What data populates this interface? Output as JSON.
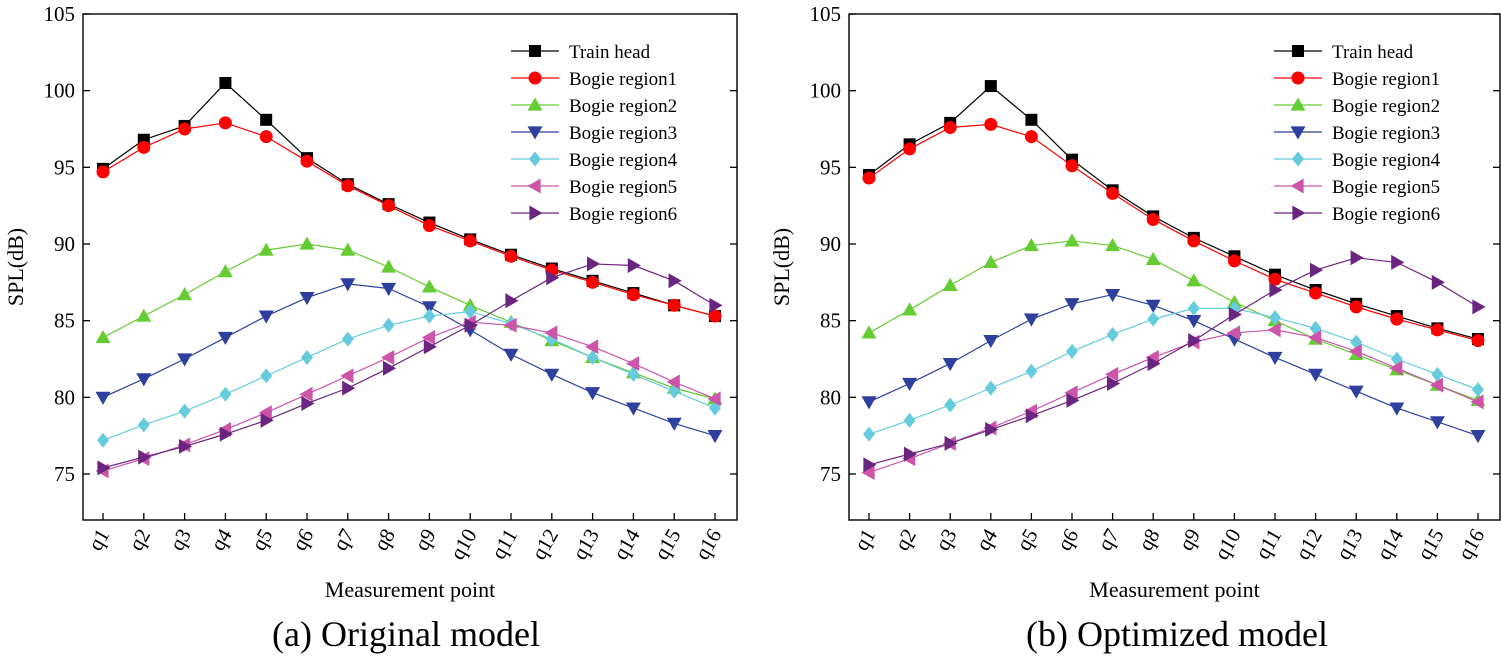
{
  "chart_data": [
    {
      "type": "line",
      "caption": "(a) Original model",
      "xlabel": "Measurement point",
      "ylabel": "SPL(dB)",
      "ylim": [
        72,
        105
      ],
      "yticks": [
        75,
        80,
        85,
        90,
        95,
        100,
        105
      ],
      "categories": [
        "q1",
        "q2",
        "q3",
        "q4",
        "q5",
        "q6",
        "q7",
        "q8",
        "q9",
        "q10",
        "q11",
        "q12",
        "q13",
        "q14",
        "q15",
        "q16"
      ],
      "legend_position": "top-right",
      "series": [
        {
          "name": "Train head",
          "color": "#000000",
          "marker": "square",
          "values": [
            94.9,
            96.8,
            97.7,
            100.5,
            98.1,
            95.6,
            93.9,
            92.6,
            91.4,
            90.3,
            89.3,
            88.4,
            87.6,
            86.8,
            86.0,
            85.3
          ]
        },
        {
          "name": "Bogie region1",
          "color": "#ff0000",
          "marker": "circle",
          "values": [
            94.7,
            96.3,
            97.5,
            97.9,
            97.0,
            95.4,
            93.8,
            92.5,
            91.2,
            90.2,
            89.2,
            88.3,
            87.5,
            86.7,
            86.0,
            85.3
          ]
        },
        {
          "name": "Bogie region2",
          "color": "#66cc33",
          "marker": "triangle-up",
          "values": [
            83.9,
            85.3,
            86.7,
            88.2,
            89.6,
            90.0,
            89.6,
            88.5,
            87.2,
            86.0,
            84.9,
            83.7,
            82.6,
            81.6,
            80.6,
            79.9
          ]
        },
        {
          "name": "Bogie region3",
          "color": "#2e3f9e",
          "marker": "triangle-down",
          "values": [
            80.0,
            81.2,
            82.5,
            83.9,
            85.3,
            86.5,
            87.4,
            87.1,
            85.9,
            84.4,
            82.8,
            81.5,
            80.3,
            79.3,
            78.3,
            77.5
          ]
        },
        {
          "name": "Bogie region4",
          "color": "#66ccdd",
          "marker": "diamond",
          "values": [
            77.2,
            78.2,
            79.1,
            80.2,
            81.4,
            82.6,
            83.8,
            84.7,
            85.3,
            85.6,
            84.8,
            83.8,
            82.6,
            81.5,
            80.4,
            79.3
          ]
        },
        {
          "name": "Bogie region5",
          "color": "#cc55aa",
          "marker": "triangle-left",
          "values": [
            75.2,
            76.0,
            76.9,
            77.9,
            79.0,
            80.2,
            81.4,
            82.6,
            83.9,
            84.9,
            84.7,
            84.2,
            83.3,
            82.2,
            81.0,
            79.9
          ]
        },
        {
          "name": "Bogie region6",
          "color": "#6a2580",
          "marker": "triangle-right",
          "values": [
            75.4,
            76.1,
            76.8,
            77.6,
            78.5,
            79.6,
            80.6,
            81.9,
            83.3,
            84.7,
            86.3,
            87.8,
            88.7,
            88.6,
            87.6,
            86.0
          ]
        }
      ]
    },
    {
      "type": "line",
      "caption": "(b) Optimized model",
      "xlabel": "Measurement point",
      "ylabel": "SPL(dB)",
      "ylim": [
        72,
        105
      ],
      "yticks": [
        75,
        80,
        85,
        90,
        95,
        100,
        105
      ],
      "categories": [
        "q1",
        "q2",
        "q3",
        "q4",
        "q5",
        "q6",
        "q7",
        "q8",
        "q9",
        "q10",
        "q11",
        "q12",
        "q13",
        "q14",
        "q15",
        "q16"
      ],
      "legend_position": "top-right",
      "series": [
        {
          "name": "Train head",
          "color": "#000000",
          "marker": "square",
          "values": [
            94.5,
            96.5,
            97.9,
            100.3,
            98.1,
            95.5,
            93.5,
            91.8,
            90.4,
            89.2,
            88.0,
            87.0,
            86.1,
            85.3,
            84.5,
            83.8
          ]
        },
        {
          "name": "Bogie region1",
          "color": "#ff0000",
          "marker": "circle",
          "values": [
            94.3,
            96.2,
            97.6,
            97.8,
            97.0,
            95.1,
            93.3,
            91.6,
            90.2,
            88.9,
            87.7,
            86.8,
            85.9,
            85.1,
            84.4,
            83.7
          ]
        },
        {
          "name": "Bogie region2",
          "color": "#66cc33",
          "marker": "triangle-up",
          "values": [
            84.2,
            85.7,
            87.3,
            88.8,
            89.9,
            90.2,
            89.9,
            89.0,
            87.6,
            86.2,
            85.0,
            83.8,
            82.8,
            81.8,
            80.8,
            79.8
          ]
        },
        {
          "name": "Bogie region3",
          "color": "#2e3f9e",
          "marker": "triangle-down",
          "values": [
            79.7,
            80.9,
            82.2,
            83.7,
            85.1,
            86.1,
            86.7,
            86.0,
            85.0,
            83.8,
            82.6,
            81.5,
            80.4,
            79.3,
            78.4,
            77.5
          ]
        },
        {
          "name": "Bogie region4",
          "color": "#66ccdd",
          "marker": "diamond",
          "values": [
            77.6,
            78.5,
            79.5,
            80.6,
            81.7,
            83.0,
            84.1,
            85.1,
            85.8,
            85.8,
            85.2,
            84.5,
            83.6,
            82.5,
            81.5,
            80.5
          ]
        },
        {
          "name": "Bogie region5",
          "color": "#cc55aa",
          "marker": "triangle-left",
          "values": [
            75.1,
            76.0,
            77.0,
            78.0,
            79.1,
            80.3,
            81.5,
            82.6,
            83.6,
            84.2,
            84.4,
            83.9,
            83.0,
            81.9,
            80.8,
            79.7
          ]
        },
        {
          "name": "Bogie region6",
          "color": "#6a2580",
          "marker": "triangle-right",
          "values": [
            75.6,
            76.3,
            77.0,
            77.9,
            78.8,
            79.8,
            80.9,
            82.2,
            83.7,
            85.4,
            87.0,
            88.3,
            89.1,
            88.8,
            87.5,
            85.9
          ]
        }
      ]
    }
  ]
}
